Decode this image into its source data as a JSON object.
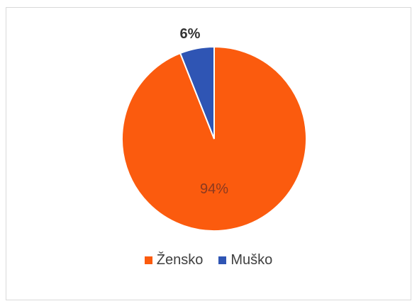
{
  "chart_data": {
    "type": "pie",
    "categories": [
      "Žensko",
      "Muško"
    ],
    "values": [
      94,
      6
    ],
    "labels": [
      "94%",
      "6%"
    ],
    "colors": [
      "#fb5b0e",
      "#2f55b4"
    ],
    "start_angle_deg": 0,
    "direction": "clockwise",
    "legend_position": "bottom"
  }
}
